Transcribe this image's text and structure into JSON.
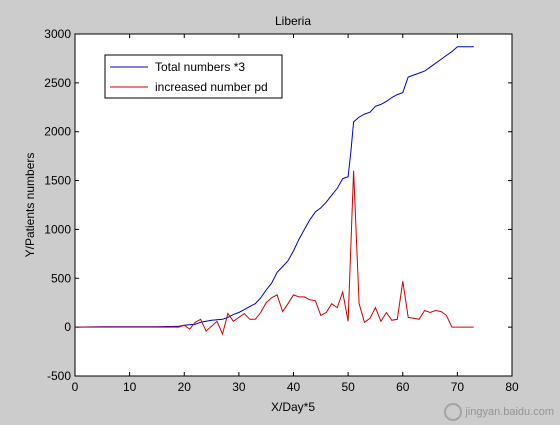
{
  "chart_data": {
    "type": "line",
    "title": "Liberia",
    "xlabel": "X/Day*5",
    "ylabel": "Y/Patients numbers",
    "xlim": [
      0,
      80
    ],
    "ylim": [
      -500,
      3000
    ],
    "xticks": [
      0,
      10,
      20,
      30,
      40,
      50,
      60,
      70,
      80
    ],
    "yticks": [
      -500,
      0,
      500,
      1000,
      1500,
      2000,
      2500,
      3000
    ],
    "grid": false,
    "legend_position": "top-left",
    "series": [
      {
        "name": "Total numbers *3",
        "color": "#0000cc",
        "x": [
          0,
          5,
          10,
          15,
          19,
          20,
          21,
          22,
          23,
          24,
          25,
          26,
          27,
          28,
          29,
          30,
          31,
          32,
          33,
          34,
          35,
          36,
          37,
          38,
          39,
          40,
          41,
          42,
          43,
          44,
          45,
          46,
          47,
          48,
          49,
          50,
          50.5,
          51,
          52,
          53,
          54,
          55,
          56,
          57,
          58,
          59,
          60,
          61,
          62,
          63,
          64,
          65,
          66,
          67,
          68,
          69,
          70,
          71,
          72,
          73
        ],
        "y": [
          0,
          5,
          5,
          5,
          10,
          20,
          25,
          30,
          50,
          60,
          70,
          75,
          80,
          100,
          130,
          150,
          180,
          210,
          240,
          300,
          380,
          450,
          560,
          620,
          680,
          780,
          900,
          1000,
          1100,
          1180,
          1220,
          1280,
          1350,
          1420,
          1520,
          1540,
          1800,
          2100,
          2150,
          2180,
          2200,
          2260,
          2280,
          2310,
          2350,
          2380,
          2400,
          2560,
          2580,
          2600,
          2620,
          2660,
          2700,
          2740,
          2780,
          2820,
          2870,
          2870,
          2870,
          2870
        ]
      },
      {
        "name": "increased number pd",
        "color": "#cc0000",
        "x": [
          0,
          5,
          10,
          15,
          19,
          20,
          21,
          22,
          23,
          24,
          25,
          26,
          27,
          28,
          29,
          30,
          31,
          32,
          33,
          34,
          35,
          36,
          37,
          38,
          39,
          40,
          41,
          42,
          43,
          44,
          45,
          46,
          47,
          48,
          49,
          50,
          51,
          52,
          53,
          54,
          55,
          56,
          57,
          58,
          59,
          60,
          61,
          62,
          63,
          64,
          65,
          66,
          67,
          68,
          69,
          70,
          71,
          72,
          73
        ],
        "y": [
          0,
          0,
          0,
          0,
          0,
          20,
          -20,
          50,
          80,
          -40,
          10,
          60,
          -70,
          140,
          60,
          100,
          140,
          80,
          80,
          150,
          250,
          300,
          330,
          160,
          240,
          330,
          310,
          310,
          280,
          270,
          120,
          150,
          240,
          200,
          360,
          60,
          1600,
          240,
          50,
          90,
          200,
          60,
          150,
          70,
          80,
          470,
          100,
          90,
          80,
          170,
          150,
          170,
          160,
          120,
          0,
          0,
          0,
          0,
          0
        ]
      }
    ]
  },
  "watermark": {
    "text": "jingyan.baidu.com"
  }
}
